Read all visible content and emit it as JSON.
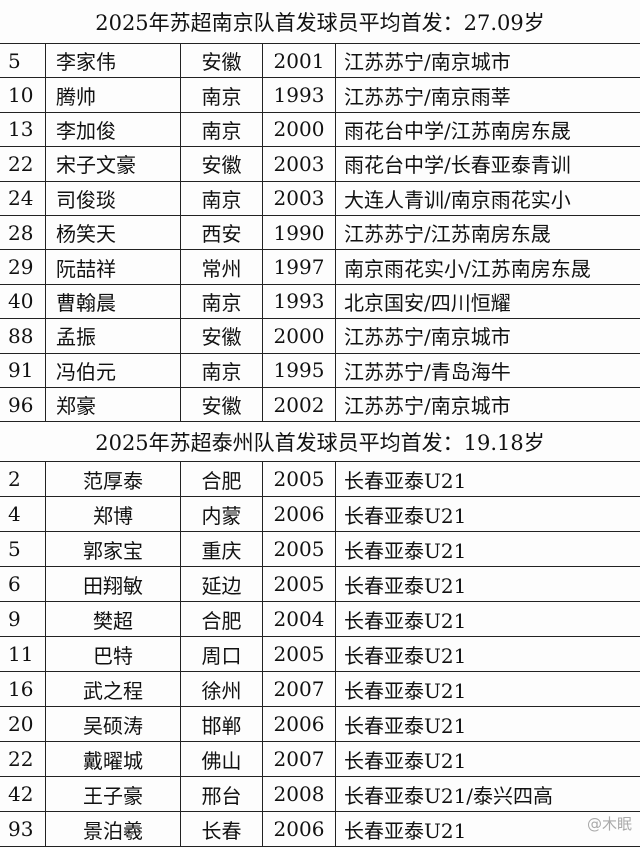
{
  "sections": [
    {
      "title": "2025年苏超南京队首发球员平均首发：27.09岁",
      "rows": [
        [
          "5",
          "李家伟",
          "安徽",
          "2001",
          "江苏苏宁/南京城市"
        ],
        [
          "10",
          "腾帅",
          "南京",
          "1993",
          "江苏苏宁/南京雨莘"
        ],
        [
          "13",
          "李加俊",
          "南京",
          "2000",
          "雨花台中学/江苏南房东晟"
        ],
        [
          "22",
          "宋子文豪",
          "安徽",
          "2003",
          "雨花台中学/长春亚泰青训"
        ],
        [
          "24",
          "司俊琰",
          "南京",
          "2003",
          "大连人青训/南京雨花实小"
        ],
        [
          "28",
          "杨笑天",
          "西安",
          "1990",
          "江苏苏宁/江苏南房东晟"
        ],
        [
          "29",
          "阮喆祥",
          "常州",
          "1997",
          "南京雨花实小/江苏南房东晟"
        ],
        [
          "40",
          "曹翰晨",
          "南京",
          "1993",
          "北京国安/四川恒耀"
        ],
        [
          "88",
          "孟振",
          "安徽",
          "2000",
          "江苏苏宁/南京城市"
        ],
        [
          "91",
          "冯伯元",
          "南京",
          "1995",
          "江苏苏宁/青岛海牛"
        ],
        [
          "96",
          "郑豪",
          "安徽",
          "2002",
          "江苏苏宁/南京城市"
        ]
      ]
    },
    {
      "title": "2025年苏超泰州队首发球员平均首发：19.18岁",
      "rows": [
        [
          "2",
          "范厚泰",
          "合肥",
          "2005",
          "长春亚泰U21"
        ],
        [
          "4",
          "郑博",
          "内蒙",
          "2006",
          "长春亚泰U21"
        ],
        [
          "5",
          "郭家宝",
          "重庆",
          "2005",
          "长春亚泰U21"
        ],
        [
          "6",
          "田翔敏",
          "延边",
          "2005",
          "长春亚泰U21"
        ],
        [
          "9",
          "樊超",
          "合肥",
          "2004",
          "长春亚泰U21"
        ],
        [
          "11",
          "巴特",
          "周口",
          "2005",
          "长春亚泰U21"
        ],
        [
          "16",
          "武之程",
          "徐州",
          "2007",
          "长春亚泰U21"
        ],
        [
          "20",
          "吴硕涛",
          "邯郸",
          "2006",
          "长春亚泰U21"
        ],
        [
          "22",
          "戴曜城",
          "佛山",
          "2007",
          "长春亚泰U21"
        ],
        [
          "42",
          "王子豪",
          "邢台",
          "2008",
          "长春亚泰U21/泰兴四高"
        ],
        [
          "93",
          "景泊羲",
          "长春",
          "2006",
          "长春亚泰U21"
        ]
      ]
    }
  ],
  "watermark": "@木眠"
}
